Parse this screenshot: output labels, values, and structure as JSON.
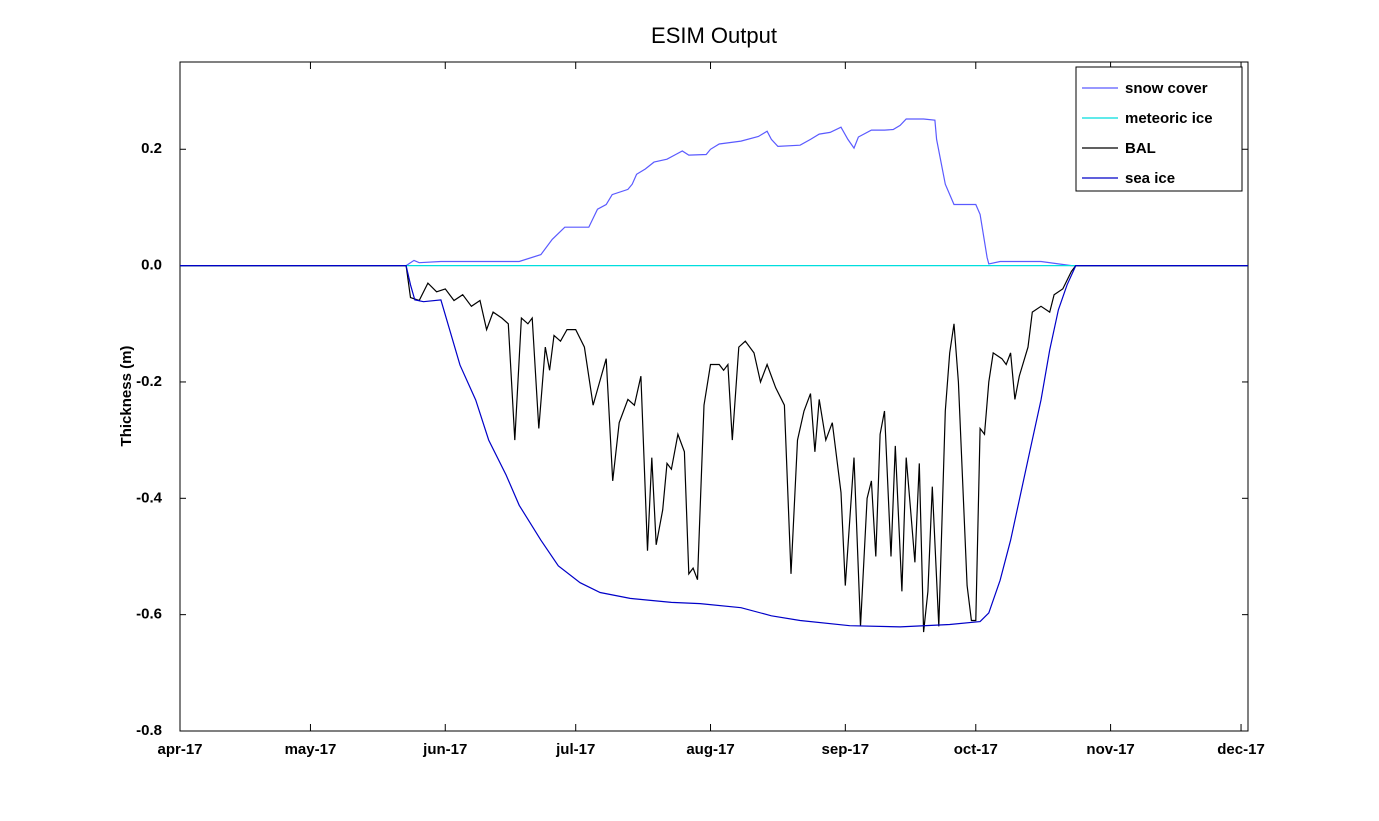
{
  "chart_data": {
    "type": "line",
    "title": "ESIM Output",
    "y_label": "Thickness (m)",
    "xlim": [
      0,
      245.6
    ],
    "ylim": [
      -0.8,
      0.35
    ],
    "xticks": [
      {
        "value": 0,
        "label": "apr-17"
      },
      {
        "value": 30,
        "label": "may-17"
      },
      {
        "value": 61,
        "label": "jun-17"
      },
      {
        "value": 91,
        "label": "jul-17"
      },
      {
        "value": 122,
        "label": "aug-17"
      },
      {
        "value": 153,
        "label": "sep-17"
      },
      {
        "value": 183,
        "label": "oct-17"
      },
      {
        "value": 214,
        "label": "nov-17"
      },
      {
        "value": 244,
        "label": "dec-17"
      }
    ],
    "yticks": [
      -0.8,
      -0.6,
      -0.4,
      -0.2,
      {
        "value": 0,
        "label": "0.0"
      },
      0.2
    ],
    "legend": "top-right",
    "series": [
      {
        "name": "snow cover",
        "color": "#5a5aff",
        "x": [
          0,
          52,
          53.8,
          55,
          60,
          76,
          78,
          83,
          85.6,
          88.5,
          94,
          96,
          98,
          99.4,
          103,
          104,
          105,
          107,
          109,
          112,
          114,
          115.5,
          117,
          121,
          122,
          124,
          129,
          133,
          135,
          136,
          137.5,
          142.6,
          145,
          147,
          149.5,
          152,
          153.6,
          155,
          156,
          159,
          162,
          164,
          165.6,
          167,
          171,
          173.6,
          174,
          176,
          178,
          183,
          184,
          185.6,
          186,
          188.6,
          198,
          202,
          205,
          245.6
        ],
        "values": [
          0,
          0,
          0.009,
          0.005,
          0.007,
          0.007,
          0.007,
          0.019,
          0.045,
          0.066,
          0.066,
          0.097,
          0.105,
          0.122,
          0.131,
          0.14,
          0.157,
          0.166,
          0.178,
          0.183,
          0.191,
          0.197,
          0.19,
          0.191,
          0.2,
          0.209,
          0.214,
          0.222,
          0.231,
          0.217,
          0.205,
          0.207,
          0.217,
          0.226,
          0.229,
          0.238,
          0.217,
          0.202,
          0.221,
          0.233,
          0.233,
          0.234,
          0.241,
          0.252,
          0.252,
          0.25,
          0.217,
          0.14,
          0.105,
          0.105,
          0.088,
          0.014,
          0.003,
          0.007,
          0.007,
          0.003,
          0,
          0
        ]
      },
      {
        "name": "meteoric ice",
        "color": "#00dede",
        "x": [
          0,
          245.6
        ],
        "values": [
          0,
          0
        ]
      },
      {
        "name": "BAL",
        "color": "#000000",
        "x": [
          0,
          52,
          53,
          55,
          57,
          59,
          61,
          63,
          65,
          67,
          69,
          70.5,
          72,
          74,
          75.5,
          77,
          78.5,
          80,
          81,
          82.5,
          84,
          85,
          86,
          87.5,
          89,
          91,
          93,
          95,
          96.5,
          98,
          99.5,
          101,
          103,
          104.5,
          106,
          107.5,
          108.5,
          109.5,
          111,
          112,
          113,
          114.5,
          116,
          117,
          118,
          119,
          120.5,
          122,
          124,
          125,
          126,
          127,
          128.5,
          130,
          132,
          133.5,
          135,
          137,
          139,
          140.5,
          142,
          143.5,
          145,
          146,
          147,
          148.5,
          150,
          152,
          153,
          155,
          156.5,
          158,
          159,
          160,
          161,
          162,
          163.5,
          164.5,
          166,
          167,
          168,
          169,
          170,
          171,
          172,
          173,
          174.5,
          176,
          177,
          178,
          179,
          181,
          182,
          183,
          184,
          185,
          186,
          187,
          189,
          190,
          191,
          192,
          193,
          195,
          196,
          198,
          200,
          201,
          203,
          205,
          206,
          245.6
        ],
        "values": [
          0,
          0,
          -0.055,
          -0.06,
          -0.03,
          -0.045,
          -0.04,
          -0.06,
          -0.05,
          -0.07,
          -0.06,
          -0.11,
          -0.08,
          -0.09,
          -0.1,
          -0.3,
          -0.09,
          -0.1,
          -0.09,
          -0.28,
          -0.14,
          -0.18,
          -0.12,
          -0.13,
          -0.11,
          -0.11,
          -0.14,
          -0.24,
          -0.2,
          -0.16,
          -0.37,
          -0.27,
          -0.23,
          -0.24,
          -0.19,
          -0.49,
          -0.33,
          -0.48,
          -0.42,
          -0.34,
          -0.35,
          -0.29,
          -0.32,
          -0.53,
          -0.52,
          -0.54,
          -0.24,
          -0.17,
          -0.17,
          -0.18,
          -0.17,
          -0.3,
          -0.14,
          -0.13,
          -0.15,
          -0.2,
          -0.17,
          -0.21,
          -0.24,
          -0.53,
          -0.3,
          -0.25,
          -0.22,
          -0.32,
          -0.23,
          -0.3,
          -0.27,
          -0.39,
          -0.55,
          -0.33,
          -0.62,
          -0.4,
          -0.37,
          -0.5,
          -0.29,
          -0.25,
          -0.5,
          -0.31,
          -0.56,
          -0.33,
          -0.42,
          -0.51,
          -0.34,
          -0.63,
          -0.56,
          -0.38,
          -0.62,
          -0.25,
          -0.15,
          -0.1,
          -0.2,
          -0.55,
          -0.61,
          -0.61,
          -0.28,
          -0.29,
          -0.2,
          -0.15,
          -0.16,
          -0.17,
          -0.15,
          -0.23,
          -0.19,
          -0.14,
          -0.08,
          -0.07,
          -0.08,
          -0.05,
          -0.04,
          -0.01,
          0,
          0
        ]
      },
      {
        "name": "sea ice",
        "color": "#0000c8",
        "x": [
          0,
          52,
          53,
          54,
          56,
          60,
          62,
          64.4,
          68,
          71,
          75,
          78,
          83,
          87,
          92,
          96.6,
          103.5,
          113,
          119.6,
          129,
          136,
          142.6,
          154,
          165.6,
          177,
          184,
          186,
          188.6,
          191,
          193,
          195.5,
          198,
          200,
          202,
          204,
          206,
          245.6
        ],
        "values": [
          0,
          0,
          -0.033,
          -0.059,
          -0.062,
          -0.059,
          -0.11,
          -0.171,
          -0.231,
          -0.3,
          -0.36,
          -0.412,
          -0.472,
          -0.516,
          -0.545,
          -0.562,
          -0.572,
          -0.579,
          -0.581,
          -0.588,
          -0.602,
          -0.61,
          -0.619,
          -0.621,
          -0.617,
          -0.612,
          -0.597,
          -0.541,
          -0.472,
          -0.403,
          -0.317,
          -0.231,
          -0.145,
          -0.076,
          -0.033,
          0,
          0
        ]
      }
    ]
  }
}
